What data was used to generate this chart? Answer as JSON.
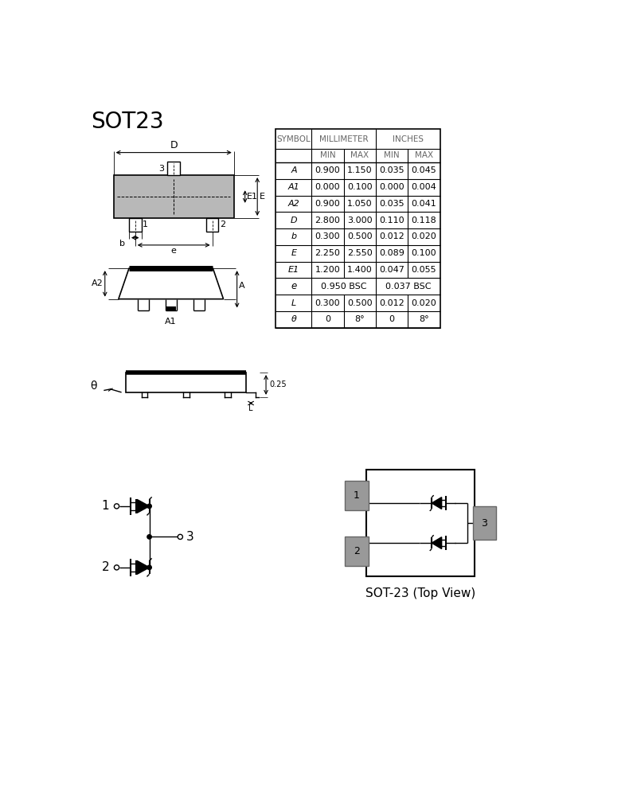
{
  "title": "SOT23",
  "bg_color": "#ffffff",
  "table_rows": [
    [
      "A",
      "0.900",
      "1.150",
      "0.035",
      "0.045"
    ],
    [
      "A1",
      "0.000",
      "0.100",
      "0.000",
      "0.004"
    ],
    [
      "A2",
      "0.900",
      "1.050",
      "0.035",
      "0.041"
    ],
    [
      "D",
      "2.800",
      "3.000",
      "0.110",
      "0.118"
    ],
    [
      "b",
      "0.300",
      "0.500",
      "0.012",
      "0.020"
    ],
    [
      "E",
      "2.250",
      "2.550",
      "0.089",
      "0.100"
    ],
    [
      "E1",
      "1.200",
      "1.400",
      "0.047",
      "0.055"
    ],
    [
      "e",
      "0.950 BSC",
      "",
      "0.037 BSC",
      ""
    ],
    [
      "L",
      "0.300",
      "0.500",
      "0.012",
      "0.020"
    ],
    [
      "θ",
      "0",
      "8°",
      "0",
      "8°"
    ]
  ]
}
